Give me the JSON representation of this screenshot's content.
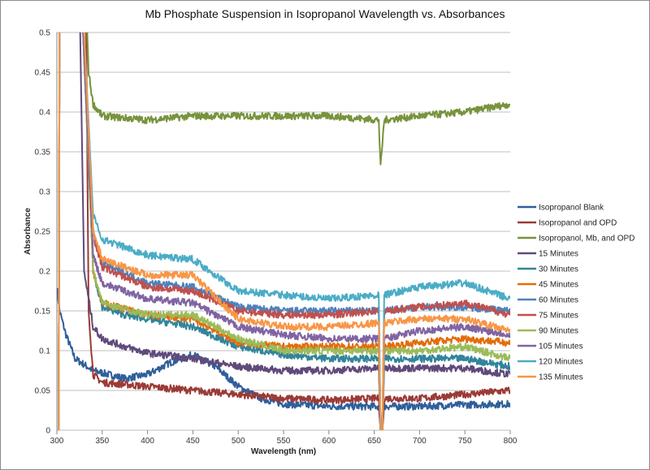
{
  "chart_data": {
    "type": "line",
    "title": "Mb Phosphate Suspension in Isopropanol Wavelength vs. Absorbances",
    "xlabel": "Wavelength (nm)",
    "ylabel": "Absorbance",
    "xlim": [
      300,
      800
    ],
    "ylim": [
      0,
      0.5
    ],
    "xticks": [
      300,
      350,
      400,
      450,
      500,
      550,
      600,
      650,
      700,
      750,
      800
    ],
    "yticks": [
      0,
      0.05,
      0.1,
      0.15,
      0.2,
      0.25,
      0.3,
      0.35,
      0.4,
      0.45,
      0.5
    ],
    "ytick_labels": [
      "0",
      "0.05",
      "0.1",
      "0.15",
      "0.2",
      "0.25",
      "0.3",
      "0.35",
      "0.4",
      "0.45",
      "0.5"
    ],
    "grid": "horizontal",
    "legend_position": "right",
    "series": [
      {
        "name": "Isopropanol Blank",
        "color": "#2f5f9a",
        "points": [
          [
            300,
            0.18
          ],
          [
            303,
            0.15
          ],
          [
            310,
            0.12
          ],
          [
            320,
            0.09
          ],
          [
            340,
            0.075
          ],
          [
            375,
            0.065
          ],
          [
            400,
            0.07
          ],
          [
            425,
            0.085
          ],
          [
            450,
            0.095
          ],
          [
            475,
            0.08
          ],
          [
            500,
            0.055
          ],
          [
            525,
            0.04
          ],
          [
            550,
            0.033
          ],
          [
            600,
            0.03
          ],
          [
            655,
            0.03
          ],
          [
            657,
            0
          ],
          [
            659,
            0
          ],
          [
            661,
            0.03
          ],
          [
            700,
            0.03
          ],
          [
            750,
            0.032
          ],
          [
            800,
            0.033
          ]
        ]
      },
      {
        "name": "Isopropanol and OPD",
        "color": "#9b3a36",
        "points": [
          [
            302,
            0
          ],
          [
            303,
            0.55
          ],
          [
            332,
            0.55
          ],
          [
            335,
            0.15
          ],
          [
            340,
            0.07
          ],
          [
            350,
            0.06
          ],
          [
            400,
            0.055
          ],
          [
            450,
            0.05
          ],
          [
            500,
            0.045
          ],
          [
            550,
            0.04
          ],
          [
            600,
            0.038
          ],
          [
            655,
            0.04
          ],
          [
            657,
            0
          ],
          [
            659,
            0
          ],
          [
            661,
            0.04
          ],
          [
            700,
            0.04
          ],
          [
            750,
            0.045
          ],
          [
            800,
            0.05
          ]
        ]
      },
      {
        "name": "Isopropanol, Mb, and OPD",
        "color": "#77933c",
        "points": [
          [
            302,
            0
          ],
          [
            303,
            0.55
          ],
          [
            332,
            0.55
          ],
          [
            335,
            0.45
          ],
          [
            340,
            0.41
          ],
          [
            350,
            0.395
          ],
          [
            400,
            0.39
          ],
          [
            450,
            0.395
          ],
          [
            500,
            0.395
          ],
          [
            550,
            0.395
          ],
          [
            600,
            0.395
          ],
          [
            655,
            0.39
          ],
          [
            657,
            0.33
          ],
          [
            659,
            0.36
          ],
          [
            661,
            0.39
          ],
          [
            700,
            0.395
          ],
          [
            750,
            0.4
          ],
          [
            800,
            0.41
          ]
        ]
      },
      {
        "name": "15 Minutes",
        "color": "#5f4a7b",
        "points": [
          [
            302,
            0
          ],
          [
            303,
            0.55
          ],
          [
            325,
            0.55
          ],
          [
            330,
            0.2
          ],
          [
            340,
            0.13
          ],
          [
            350,
            0.115
          ],
          [
            375,
            0.105
          ],
          [
            400,
            0.097
          ],
          [
            450,
            0.09
          ],
          [
            500,
            0.08
          ],
          [
            550,
            0.075
          ],
          [
            600,
            0.075
          ],
          [
            655,
            0.078
          ],
          [
            657,
            0
          ],
          [
            659,
            0
          ],
          [
            661,
            0.078
          ],
          [
            700,
            0.078
          ],
          [
            750,
            0.078
          ],
          [
            800,
            0.07
          ]
        ]
      },
      {
        "name": "30 Minutes",
        "color": "#31849b",
        "points": [
          [
            302,
            0
          ],
          [
            303,
            0.55
          ],
          [
            327,
            0.55
          ],
          [
            340,
            0.2
          ],
          [
            350,
            0.155
          ],
          [
            375,
            0.145
          ],
          [
            400,
            0.14
          ],
          [
            450,
            0.13
          ],
          [
            500,
            0.105
          ],
          [
            550,
            0.095
          ],
          [
            600,
            0.09
          ],
          [
            655,
            0.09
          ],
          [
            657,
            0
          ],
          [
            659,
            0
          ],
          [
            661,
            0.09
          ],
          [
            700,
            0.09
          ],
          [
            750,
            0.09
          ],
          [
            800,
            0.08
          ]
        ]
      },
      {
        "name": "45 Minutes",
        "color": "#e46c0a",
        "points": [
          [
            302,
            0
          ],
          [
            303,
            0.55
          ],
          [
            327,
            0.55
          ],
          [
            340,
            0.2
          ],
          [
            350,
            0.16
          ],
          [
            400,
            0.145
          ],
          [
            450,
            0.14
          ],
          [
            500,
            0.11
          ],
          [
            550,
            0.105
          ],
          [
            600,
            0.105
          ],
          [
            655,
            0.105
          ],
          [
            657,
            0
          ],
          [
            659,
            0
          ],
          [
            661,
            0.105
          ],
          [
            700,
            0.11
          ],
          [
            750,
            0.115
          ],
          [
            800,
            0.11
          ]
        ]
      },
      {
        "name": "60 Minutes",
        "color": "#4f81bd",
        "points": [
          [
            302,
            0
          ],
          [
            303,
            0.55
          ],
          [
            327,
            0.55
          ],
          [
            340,
            0.25
          ],
          [
            350,
            0.21
          ],
          [
            400,
            0.185
          ],
          [
            450,
            0.18
          ],
          [
            500,
            0.155
          ],
          [
            550,
            0.15
          ],
          [
            600,
            0.15
          ],
          [
            655,
            0.15
          ],
          [
            657,
            0
          ],
          [
            659,
            0
          ],
          [
            661,
            0.15
          ],
          [
            700,
            0.155
          ],
          [
            750,
            0.155
          ],
          [
            800,
            0.15
          ]
        ]
      },
      {
        "name": "75 Minutes",
        "color": "#c0504d",
        "points": [
          [
            302,
            0
          ],
          [
            303,
            0.55
          ],
          [
            327,
            0.55
          ],
          [
            340,
            0.245
          ],
          [
            350,
            0.205
          ],
          [
            400,
            0.18
          ],
          [
            450,
            0.175
          ],
          [
            500,
            0.15
          ],
          [
            550,
            0.145
          ],
          [
            600,
            0.145
          ],
          [
            655,
            0.15
          ],
          [
            657,
            0
          ],
          [
            659,
            0
          ],
          [
            661,
            0.15
          ],
          [
            700,
            0.155
          ],
          [
            750,
            0.16
          ],
          [
            800,
            0.145
          ]
        ]
      },
      {
        "name": "90 Minutes",
        "color": "#9bbb59",
        "points": [
          [
            302,
            0
          ],
          [
            303,
            0.55
          ],
          [
            327,
            0.55
          ],
          [
            340,
            0.2
          ],
          [
            350,
            0.16
          ],
          [
            400,
            0.145
          ],
          [
            450,
            0.145
          ],
          [
            500,
            0.115
          ],
          [
            550,
            0.1
          ],
          [
            600,
            0.1
          ],
          [
            655,
            0.1
          ],
          [
            657,
            0
          ],
          [
            659,
            0
          ],
          [
            661,
            0.1
          ],
          [
            700,
            0.1
          ],
          [
            750,
            0.105
          ],
          [
            800,
            0.09
          ]
        ]
      },
      {
        "name": "105 Minutes",
        "color": "#8064a2",
        "points": [
          [
            302,
            0
          ],
          [
            303,
            0.55
          ],
          [
            327,
            0.55
          ],
          [
            340,
            0.22
          ],
          [
            350,
            0.185
          ],
          [
            400,
            0.165
          ],
          [
            450,
            0.16
          ],
          [
            500,
            0.13
          ],
          [
            550,
            0.12
          ],
          [
            600,
            0.115
          ],
          [
            655,
            0.115
          ],
          [
            657,
            0
          ],
          [
            659,
            0
          ],
          [
            661,
            0.115
          ],
          [
            700,
            0.125
          ],
          [
            750,
            0.13
          ],
          [
            800,
            0.12
          ]
        ]
      },
      {
        "name": "120 Minutes",
        "color": "#4bacc6",
        "points": [
          [
            302,
            0
          ],
          [
            303,
            0.55
          ],
          [
            328,
            0.55
          ],
          [
            340,
            0.27
          ],
          [
            350,
            0.24
          ],
          [
            400,
            0.22
          ],
          [
            450,
            0.215
          ],
          [
            500,
            0.175
          ],
          [
            550,
            0.17
          ],
          [
            600,
            0.165
          ],
          [
            655,
            0.17
          ],
          [
            657,
            0
          ],
          [
            659,
            0
          ],
          [
            661,
            0.17
          ],
          [
            700,
            0.18
          ],
          [
            750,
            0.185
          ],
          [
            800,
            0.165
          ]
        ]
      },
      {
        "name": "135 Minutes",
        "color": "#f79646",
        "points": [
          [
            302,
            0
          ],
          [
            303,
            0.55
          ],
          [
            328,
            0.55
          ],
          [
            340,
            0.25
          ],
          [
            350,
            0.215
          ],
          [
            400,
            0.195
          ],
          [
            450,
            0.195
          ],
          [
            500,
            0.14
          ],
          [
            550,
            0.13
          ],
          [
            600,
            0.13
          ],
          [
            655,
            0.135
          ],
          [
            657,
            0
          ],
          [
            659,
            0
          ],
          [
            661,
            0.135
          ],
          [
            700,
            0.14
          ],
          [
            750,
            0.14
          ],
          [
            800,
            0.125
          ]
        ]
      }
    ]
  }
}
